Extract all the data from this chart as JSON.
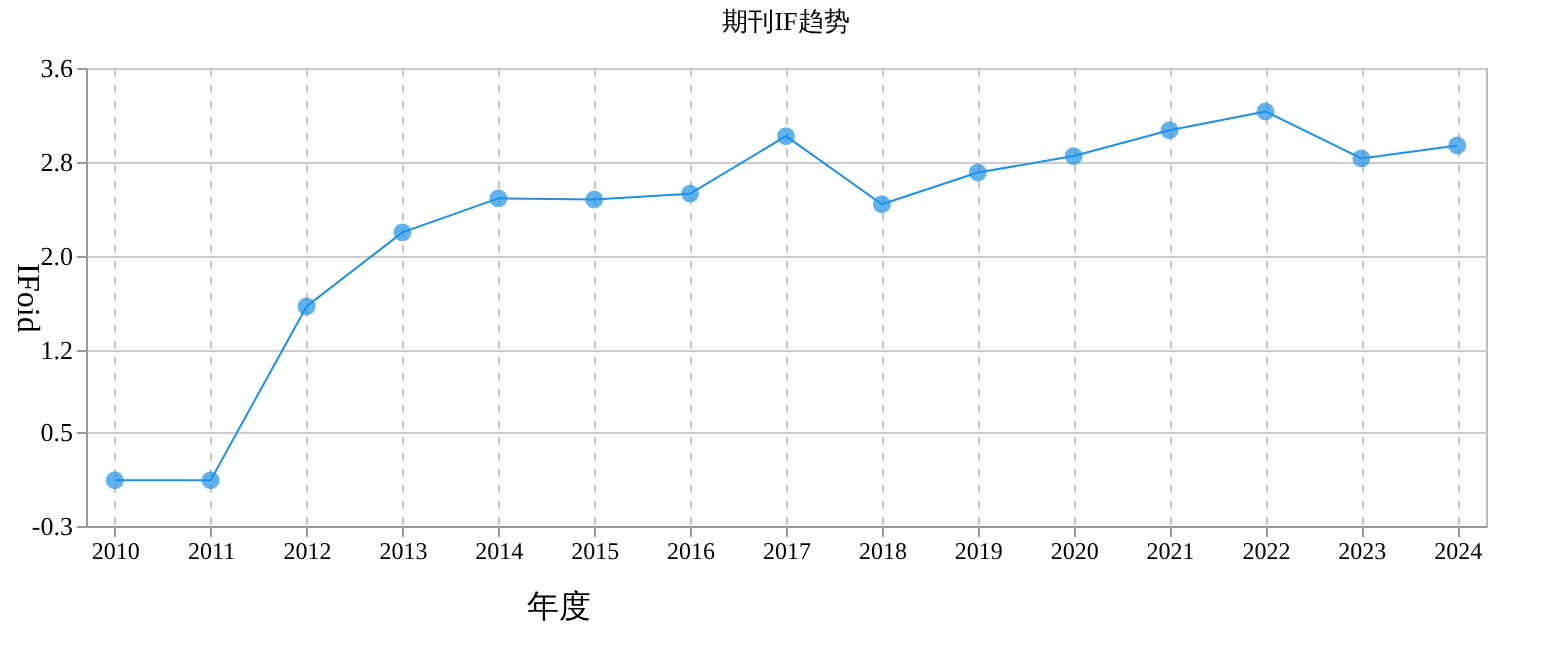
{
  "chart_data": {
    "type": "line",
    "title": "期刊IF趋势",
    "xlabel": "年度",
    "ylabel": "IFoid",
    "categories": [
      "2010",
      "2011",
      "2012",
      "2013",
      "2014",
      "2015",
      "2016",
      "2017",
      "2018",
      "2019",
      "2020",
      "2021",
      "2022",
      "2023",
      "2024"
    ],
    "series": [
      {
        "color": "#1e90e6",
        "values": [
          0.09,
          0.09,
          1.57,
          2.2,
          2.49,
          2.48,
          2.53,
          3.02,
          2.44,
          2.71,
          2.85,
          3.07,
          3.23,
          2.83,
          2.94
        ]
      }
    ],
    "ylim": [
      -0.3,
      3.6
    ],
    "yticks": [
      -0.3,
      0.5,
      1.2,
      {
        "value": 2.0,
        "label": "2.0"
      },
      2.8,
      3.6
    ],
    "grid": true,
    "marker": "circle",
    "line_style": "solid"
  }
}
